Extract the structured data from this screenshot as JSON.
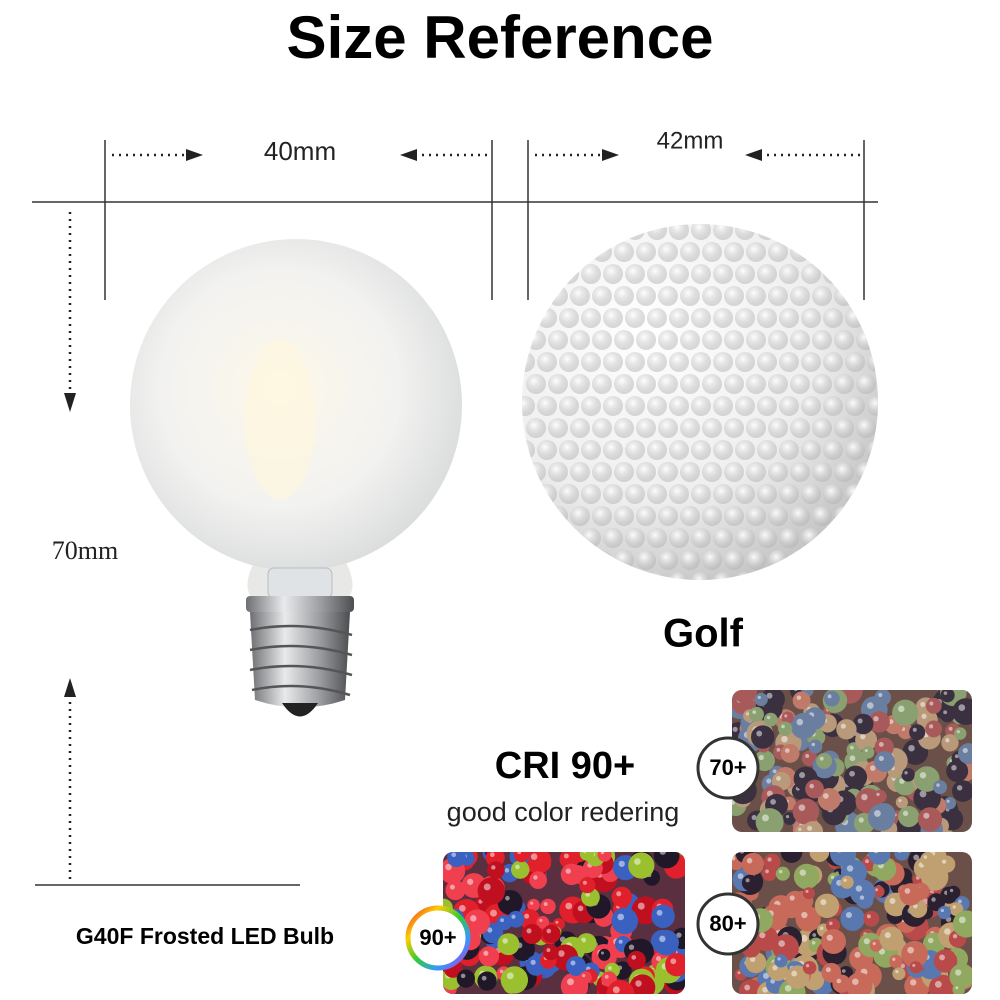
{
  "title": "Size Reference",
  "dimensions": {
    "bulb_width": "40mm",
    "golf_width": "42mm",
    "bulb_height": "70mm"
  },
  "golf_label": "Golf",
  "cri": {
    "heading": "CRI 90+",
    "subtitle": "good color redering"
  },
  "product_label": "G40F Frosted LED Bulb",
  "badges": [
    "70+",
    "90+",
    "80+"
  ]
}
